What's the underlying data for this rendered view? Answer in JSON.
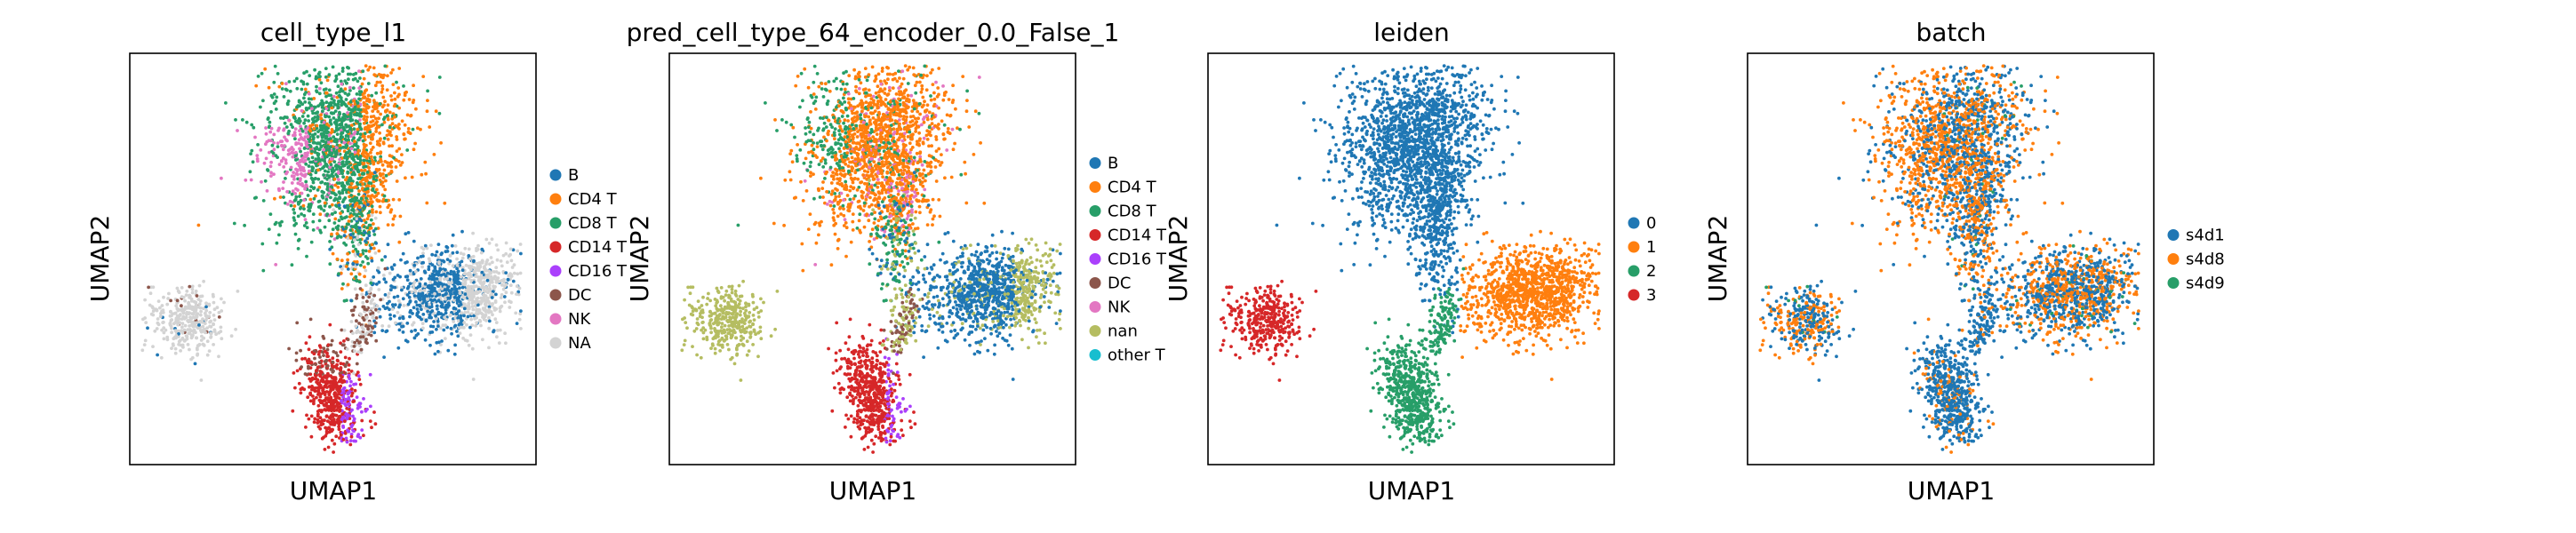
{
  "chart_data": [
    {
      "type": "scatter",
      "title": "cell_type_l1",
      "xlabel": "UMAP1",
      "ylabel": "UMAP2",
      "grid": false,
      "legend_position": "right",
      "legend": [
        {
          "name": "B",
          "color": "#1f77b4"
        },
        {
          "name": "CD4 T",
          "color": "#ff7f0e"
        },
        {
          "name": "CD8 T",
          "color": "#279e68"
        },
        {
          "name": "CD14 T",
          "color": "#d62728"
        },
        {
          "name": "CD16 T",
          "color": "#aa40fc"
        },
        {
          "name": "DC",
          "color": "#8c564b"
        },
        {
          "name": "NK",
          "color": "#e377c2"
        },
        {
          "name": "NA",
          "color": "#d3d3d3"
        }
      ]
    },
    {
      "type": "scatter",
      "title": "pred_cell_type_64_encoder_0.0_False_1",
      "xlabel": "UMAP1",
      "ylabel": "UMAP2",
      "grid": false,
      "legend_position": "right",
      "legend": [
        {
          "name": "B",
          "color": "#1f77b4"
        },
        {
          "name": "CD4 T",
          "color": "#ff7f0e"
        },
        {
          "name": "CD8 T",
          "color": "#279e68"
        },
        {
          "name": "CD14 T",
          "color": "#d62728"
        },
        {
          "name": "CD16 T",
          "color": "#aa40fc"
        },
        {
          "name": "DC",
          "color": "#8c564b"
        },
        {
          "name": "NK",
          "color": "#e377c2"
        },
        {
          "name": "nan",
          "color": "#b5bd61"
        },
        {
          "name": "other T",
          "color": "#17becf"
        }
      ]
    },
    {
      "type": "scatter",
      "title": "leiden",
      "xlabel": "UMAP1",
      "ylabel": "UMAP2",
      "grid": false,
      "legend_position": "right",
      "legend": [
        {
          "name": "0",
          "color": "#1f77b4"
        },
        {
          "name": "1",
          "color": "#ff7f0e"
        },
        {
          "name": "2",
          "color": "#279e68"
        },
        {
          "name": "3",
          "color": "#d62728"
        }
      ]
    },
    {
      "type": "scatter",
      "title": "batch",
      "xlabel": "UMAP1",
      "ylabel": "UMAP2",
      "grid": false,
      "legend_position": "right",
      "legend": [
        {
          "name": "s4d1",
          "color": "#1f77b4"
        },
        {
          "name": "s4d8",
          "color": "#ff7f0e"
        },
        {
          "name": "s4d9",
          "color": "#279e68"
        }
      ]
    }
  ]
}
